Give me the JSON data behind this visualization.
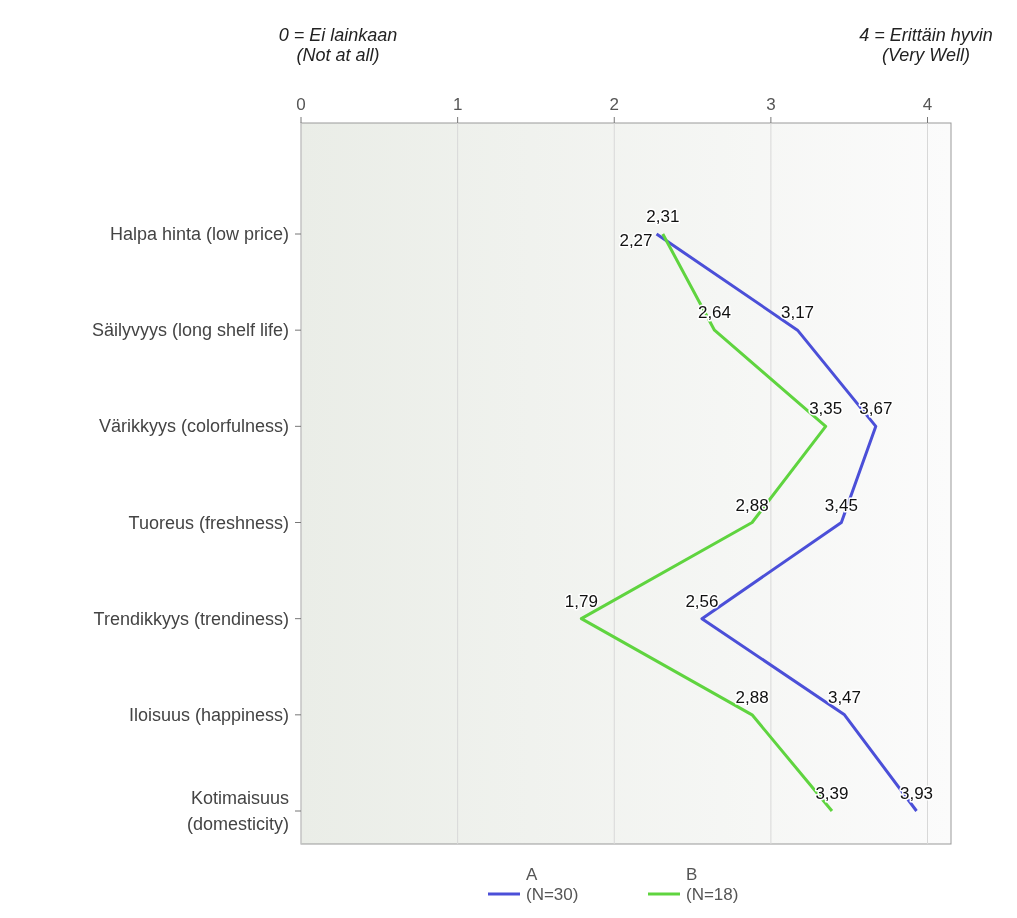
{
  "chart_data": {
    "type": "line",
    "orientation": "horizontal",
    "categories": [
      "Halpa hinta (low price)",
      "Säilyvyys (long shelf life)",
      "Värikkyys (colorfulness)",
      "Tuoreus (freshness)",
      "Trendikkyys (trendiness)",
      "Iloisuus (happiness)",
      "Kotimaisuus\n(domesticity)"
    ],
    "series": [
      {
        "name": "A\n(N=30)",
        "color": "#4b4fd8",
        "values": [
          2.27,
          3.17,
          3.67,
          3.45,
          2.56,
          3.47,
          3.93
        ],
        "value_labels": [
          "2,27",
          "3,17",
          "3,67",
          "3,45",
          "2,56",
          "3,47",
          "3,93"
        ]
      },
      {
        "name": "B\n(N=18)",
        "color": "#5fd43f",
        "values": [
          2.31,
          2.64,
          3.35,
          2.88,
          1.79,
          2.88,
          3.39
        ],
        "value_labels": [
          "2,31",
          "2,64",
          "3,35",
          "2,88",
          "1,79",
          "2,88",
          "3,39"
        ]
      }
    ],
    "xlim": [
      0,
      4.15
    ],
    "xticks": [
      0,
      1,
      2,
      3,
      4
    ],
    "grid": "x",
    "legend": "bottom",
    "marker": "none",
    "line_style": "solid",
    "annotations": [
      "0 = Ei lainkaan\n(Not at all)",
      "4 = Erittäin hyvin\n(Very Well)"
    ]
  }
}
